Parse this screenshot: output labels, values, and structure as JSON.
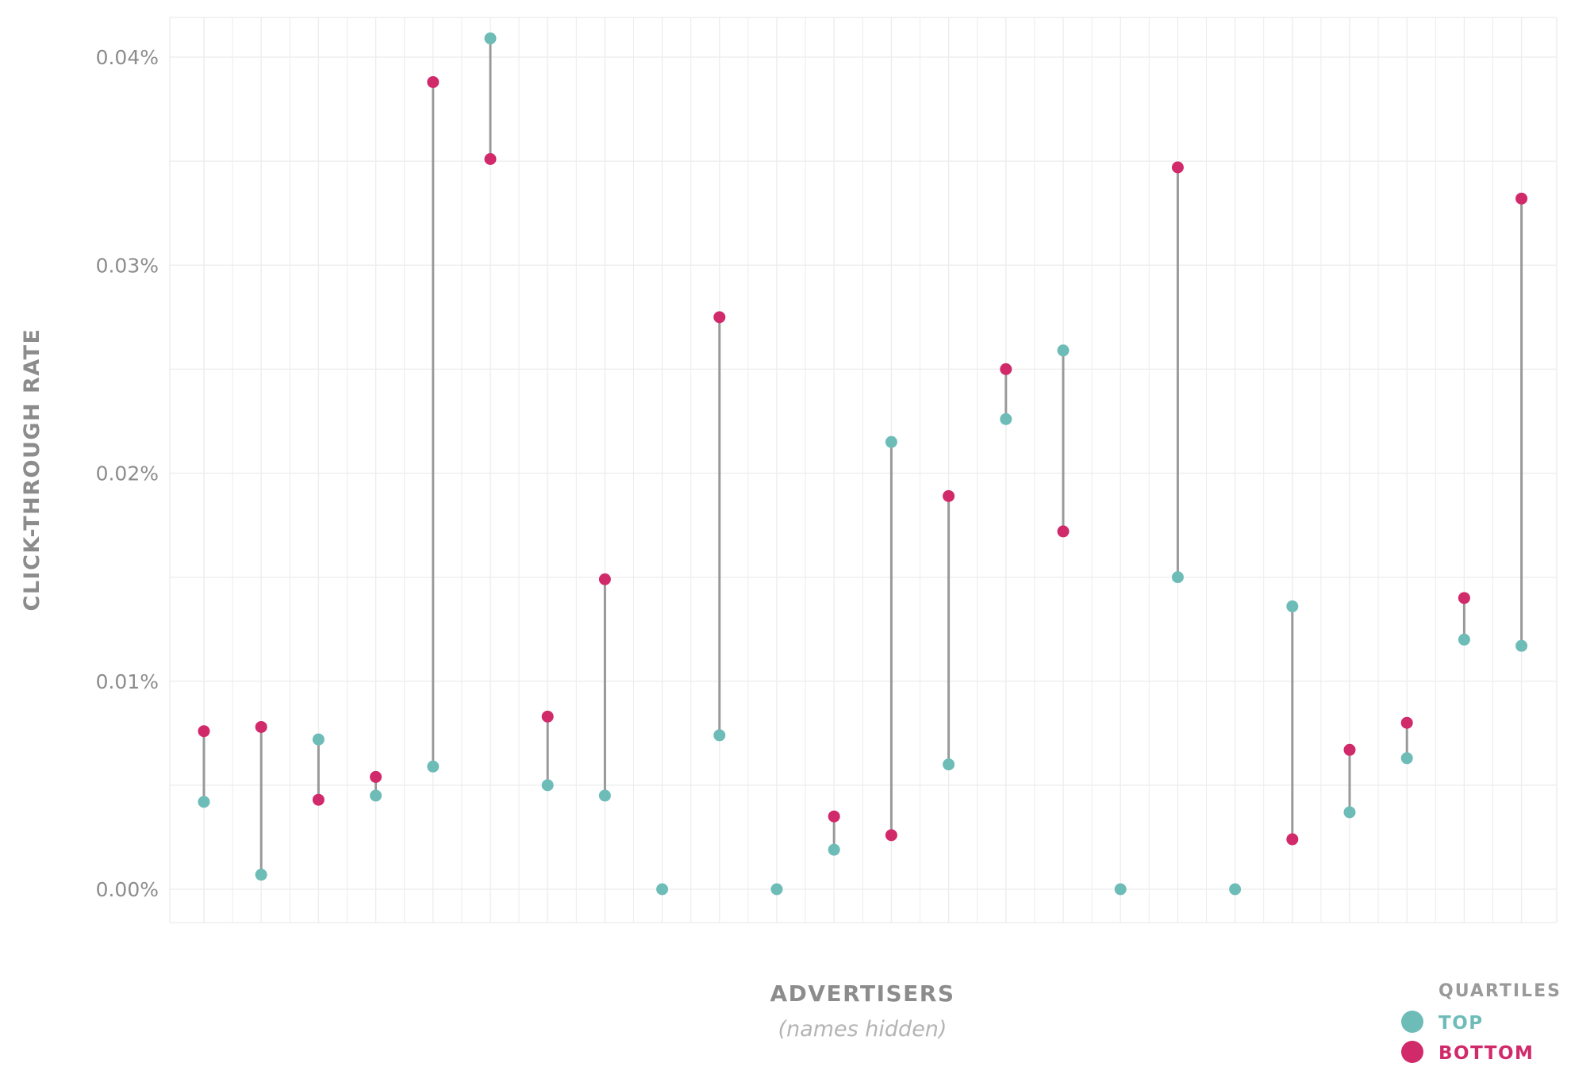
{
  "chart_data": {
    "type": "dumbbell",
    "xlabel": "ADVERTISERS",
    "xlabel_note": "(names hidden)",
    "ylabel": "CLICK-THROUGH RATE",
    "yticks": [
      "0.00%",
      "0.01%",
      "0.02%",
      "0.03%",
      "0.04%"
    ],
    "ytick_values": [
      0,
      0.01,
      0.02,
      0.03,
      0.04
    ],
    "ylim": [
      -0.0016,
      0.0419
    ],
    "grid": true,
    "legend": {
      "title": "QUARTILES",
      "position": "bottom-right",
      "items": [
        {
          "key": "top",
          "label": "TOP"
        },
        {
          "key": "bottom",
          "label": "BOTTOM"
        }
      ]
    },
    "colors": {
      "top": "#6ebcb8",
      "bottom": "#d12a6b",
      "segment": "#999999",
      "grid": "#ececec"
    },
    "series": [
      {
        "name": "TOP",
        "key": "top",
        "values": [
          0.0042,
          0.0007,
          0.0072,
          0.0045,
          0.0059,
          0.0409,
          0.005,
          0.0045,
          0.0,
          0.0074,
          0.0,
          0.0019,
          0.0215,
          0.006,
          0.0226,
          0.0259,
          0.0,
          0.015,
          0.0,
          0.0136,
          0.0037,
          0.0063,
          0.012,
          0.0117
        ]
      },
      {
        "name": "BOTTOM",
        "key": "bottom",
        "values": [
          0.0076,
          0.0078,
          0.0043,
          0.0054,
          0.0388,
          0.0351,
          0.0083,
          0.0149,
          null,
          0.0275,
          null,
          0.0035,
          0.0026,
          0.0189,
          0.025,
          0.0172,
          null,
          0.0347,
          null,
          0.0024,
          0.0067,
          0.008,
          0.014,
          0.0332
        ]
      }
    ]
  }
}
